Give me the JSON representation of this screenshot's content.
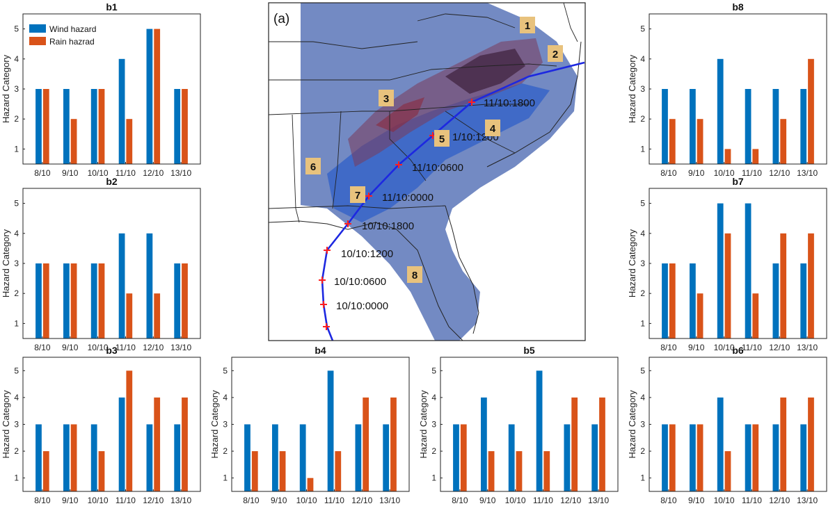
{
  "figure": {
    "map": {
      "panel_label": "(a)",
      "track_labels": [
        "11/10:1800",
        "1/10:1200",
        "11/10:0600",
        "11/10:0000",
        "10/10:1800",
        "10/10:1200",
        "10/10:0600",
        "10/10:0000"
      ],
      "site_numbers": [
        "1",
        "2",
        "3",
        "4",
        "5",
        "6",
        "7",
        "8"
      ],
      "colors": {
        "wind_fill": "#3f6fcc",
        "rain_fill": "#7a2740",
        "track": "#1d28e0",
        "track_marker": "#ff1f1f",
        "site_box": "#e8c27d"
      }
    },
    "legend": {
      "wind_label": "Wind hazard",
      "rain_label": "Rain hazrad"
    }
  },
  "chart_data": [
    {
      "type": "bar",
      "title": "b1",
      "ylabel": "Hazard Category",
      "xlabel": "",
      "categories": [
        "8/10",
        "9/10",
        "10/10",
        "11/10",
        "12/10",
        "13/10"
      ],
      "ylim": [
        0.5,
        5.5
      ],
      "yticks": [
        1,
        2,
        3,
        4,
        5
      ],
      "series": [
        {
          "name": "Wind hazard",
          "color": "#0072bd",
          "values": [
            3,
            3,
            3,
            4,
            5,
            3
          ]
        },
        {
          "name": "Rain hazrad",
          "color": "#d95319",
          "values": [
            3,
            2,
            3,
            2,
            5,
            3
          ]
        }
      ]
    },
    {
      "type": "bar",
      "title": "b2",
      "ylabel": "Hazard Category",
      "xlabel": "",
      "categories": [
        "8/10",
        "9/10",
        "10/10",
        "11/10",
        "12/10",
        "13/10"
      ],
      "ylim": [
        0.5,
        5.5
      ],
      "yticks": [
        1,
        2,
        3,
        4,
        5
      ],
      "series": [
        {
          "name": "Wind hazard",
          "color": "#0072bd",
          "values": [
            3,
            3,
            3,
            4,
            4,
            3
          ]
        },
        {
          "name": "Rain hazrad",
          "color": "#d95319",
          "values": [
            3,
            3,
            3,
            2,
            2,
            3
          ]
        }
      ]
    },
    {
      "type": "bar",
      "title": "b3",
      "ylabel": "Hazard Category",
      "xlabel": "",
      "categories": [
        "8/10",
        "9/10",
        "10/10",
        "11/10",
        "12/10",
        "13/10"
      ],
      "ylim": [
        0.5,
        5.5
      ],
      "yticks": [
        1,
        2,
        3,
        4,
        5
      ],
      "series": [
        {
          "name": "Wind hazard",
          "color": "#0072bd",
          "values": [
            3,
            3,
            3,
            4,
            3,
            3
          ]
        },
        {
          "name": "Rain hazrad",
          "color": "#d95319",
          "values": [
            2,
            3,
            2,
            5,
            4,
            4
          ]
        }
      ]
    },
    {
      "type": "bar",
      "title": "b4",
      "ylabel": "Hazard Category",
      "xlabel": "",
      "categories": [
        "8/10",
        "9/10",
        "10/10",
        "11/10",
        "12/10",
        "13/10"
      ],
      "ylim": [
        0.5,
        5.5
      ],
      "yticks": [
        1,
        2,
        3,
        4,
        5
      ],
      "series": [
        {
          "name": "Wind hazard",
          "color": "#0072bd",
          "values": [
            3,
            3,
            3,
            5,
            3,
            3
          ]
        },
        {
          "name": "Rain hazrad",
          "color": "#d95319",
          "values": [
            2,
            2,
            1,
            2,
            4,
            4
          ]
        }
      ]
    },
    {
      "type": "bar",
      "title": "b5",
      "ylabel": "Hazard Category",
      "xlabel": "",
      "categories": [
        "8/10",
        "9/10",
        "10/10",
        "11/10",
        "12/10",
        "13/10"
      ],
      "ylim": [
        0.5,
        5.5
      ],
      "yticks": [
        1,
        2,
        3,
        4,
        5
      ],
      "series": [
        {
          "name": "Wind hazard",
          "color": "#0072bd",
          "values": [
            3,
            4,
            3,
            5,
            3,
            3
          ]
        },
        {
          "name": "Rain hazrad",
          "color": "#d95319",
          "values": [
            3,
            2,
            2,
            2,
            4,
            4
          ]
        }
      ]
    },
    {
      "type": "bar",
      "title": "b6",
      "ylabel": "Hazard Category",
      "xlabel": "",
      "categories": [
        "8/10",
        "9/10",
        "10/10",
        "11/10",
        "12/10",
        "13/10"
      ],
      "ylim": [
        0.5,
        5.5
      ],
      "yticks": [
        1,
        2,
        3,
        4,
        5
      ],
      "series": [
        {
          "name": "Wind hazard",
          "color": "#0072bd",
          "values": [
            3,
            3,
            4,
            3,
            3,
            3
          ]
        },
        {
          "name": "Rain hazrad",
          "color": "#d95319",
          "values": [
            3,
            3,
            2,
            3,
            4,
            4
          ]
        }
      ]
    },
    {
      "type": "bar",
      "title": "b7",
      "ylabel": "Hazard Category",
      "xlabel": "",
      "categories": [
        "8/10",
        "9/10",
        "10/10",
        "11/10",
        "12/10",
        "13/10"
      ],
      "ylim": [
        0.5,
        5.5
      ],
      "yticks": [
        1,
        2,
        3,
        4,
        5
      ],
      "series": [
        {
          "name": "Wind hazard",
          "color": "#0072bd",
          "values": [
            3,
            3,
            5,
            5,
            3,
            3
          ]
        },
        {
          "name": "Rain hazrad",
          "color": "#d95319",
          "values": [
            3,
            2,
            4,
            2,
            4,
            4
          ]
        }
      ]
    },
    {
      "type": "bar",
      "title": "b8",
      "ylabel": "Hazard Category",
      "xlabel": "",
      "categories": [
        "8/10",
        "9/10",
        "10/10",
        "11/10",
        "12/10",
        "13/10"
      ],
      "ylim": [
        0.5,
        5.5
      ],
      "yticks": [
        1,
        2,
        3,
        4,
        5
      ],
      "series": [
        {
          "name": "Wind hazard",
          "color": "#0072bd",
          "values": [
            3,
            3,
            4,
            3,
            3,
            3
          ]
        },
        {
          "name": "Rain hazrad",
          "color": "#d95319",
          "values": [
            2,
            2,
            1,
            1,
            2,
            4
          ]
        }
      ]
    }
  ]
}
